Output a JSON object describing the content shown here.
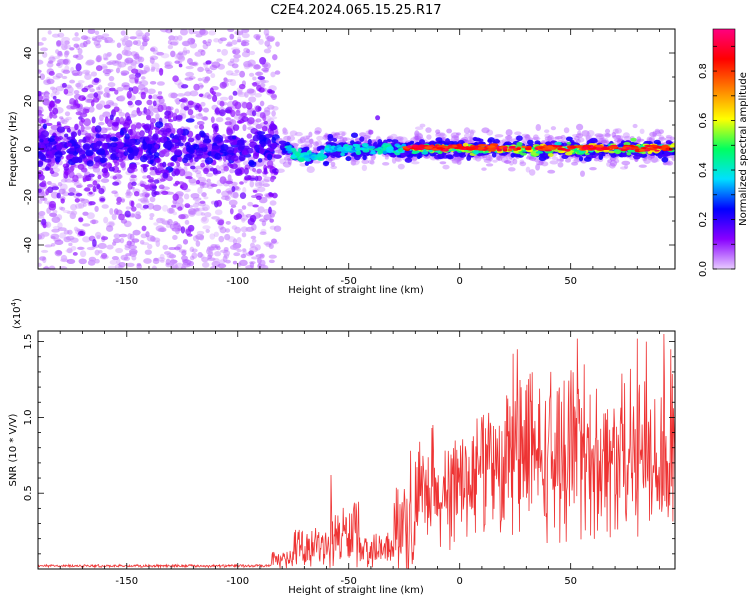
{
  "title": "C2E4.2024.065.15.25.R17",
  "chart_data": [
    {
      "type": "heatmap",
      "name": "spectrogram",
      "xlabel": "Height of straight line (km)",
      "ylabel": "Frequency (Hz)",
      "xlim": [
        -190,
        97
      ],
      "ylim": [
        -50,
        50
      ],
      "x_ticks": [
        -150,
        -100,
        -50,
        0,
        50
      ],
      "y_ticks": [
        -40,
        -20,
        0,
        20,
        40
      ],
      "colorbar": {
        "label": "Normalized spectral amplitude",
        "range": [
          0,
          0.97
        ],
        "ticks": [
          0.0,
          0.2,
          0.4,
          0.6,
          0.8
        ],
        "colors": [
          "#e8ccff",
          "#8800ff",
          "#0000ff",
          "#00e0ff",
          "#00ff60",
          "#ffff00",
          "#ff8000",
          "#ff0000",
          "#ff0080"
        ]
      },
      "regions": [
        {
          "x_range": [
            -190,
            -80
          ],
          "y_spread": [
            -50,
            50
          ],
          "core_y_spread": [
            -12,
            12
          ],
          "amplitude": [
            0.05,
            0.2
          ]
        },
        {
          "x_range": [
            -80,
            97
          ],
          "core_y_spread": [
            -5,
            5
          ],
          "amplitude": [
            0.2,
            0.97
          ],
          "peak_x_range": [
            -25,
            97
          ]
        }
      ]
    },
    {
      "type": "line",
      "name": "snr",
      "xlabel": "Height of straight line (km)",
      "ylabel": "SNR (10 * V/V)",
      "y_exponent_label": "(x10",
      "y_exponent_power": "4",
      "y_exponent_close": ")",
      "xlim": [
        -190,
        97
      ],
      "ylim": [
        0,
        1.57
      ],
      "x_ticks": [
        -150,
        -100,
        -50,
        0,
        50
      ],
      "y_ticks": [
        0.5,
        1.0,
        1.5
      ],
      "y_tick_labels": [
        "0.5",
        "1.0",
        "1.5"
      ],
      "line_color": "#ee3333",
      "segments": [
        {
          "x": [
            -190,
            -85
          ],
          "mean": 0.02,
          "amp": 0.01
        },
        {
          "x": [
            -85,
            -75
          ],
          "mean": 0.06,
          "amp": 0.06
        },
        {
          "x": [
            -75,
            -58
          ],
          "mean": 0.14,
          "amp": 0.14
        },
        {
          "x": [
            -58,
            -45
          ],
          "mean": 0.22,
          "amp": 0.24
        },
        {
          "x": [
            -45,
            -30
          ],
          "mean": 0.12,
          "amp": 0.12
        },
        {
          "x": [
            -30,
            -20
          ],
          "mean": 0.22,
          "amp": 0.32
        },
        {
          "x": [
            -20,
            0
          ],
          "mean": 0.45,
          "amp": 0.4
        },
        {
          "x": [
            0,
            20
          ],
          "mean": 0.6,
          "amp": 0.45
        },
        {
          "x": [
            20,
            97
          ],
          "mean": 0.72,
          "amp": 0.6
        }
      ],
      "peaks": [
        {
          "x": -58,
          "y": 0.62
        },
        {
          "x": -22,
          "y": 0.78
        },
        {
          "x": -12,
          "y": 0.95
        },
        {
          "x": -12.5,
          "y": 0.93
        },
        {
          "x": 24,
          "y": 1.42
        },
        {
          "x": 26,
          "y": 1.45
        },
        {
          "x": 53,
          "y": 1.52
        },
        {
          "x": 56,
          "y": 1.35
        },
        {
          "x": 77,
          "y": 1.32
        },
        {
          "x": 80,
          "y": 1.52
        },
        {
          "x": 84,
          "y": 1.5
        },
        {
          "x": 92,
          "y": 1.55
        },
        {
          "x": 95,
          "y": 1.45
        }
      ]
    }
  ]
}
